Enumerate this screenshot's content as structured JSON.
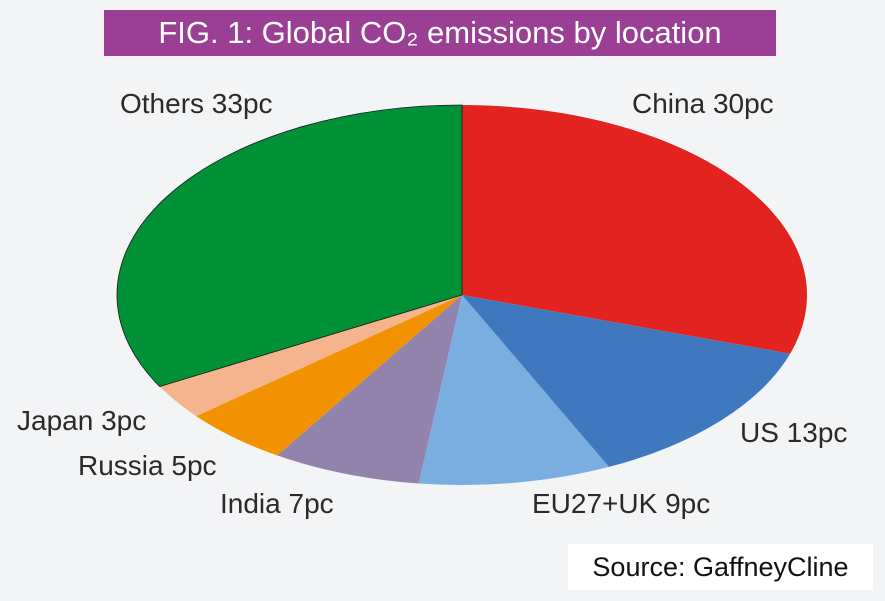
{
  "header": {
    "title": "FIG. 1: Global CO₂ emissions by location",
    "source": "Source: GaffneyCline"
  },
  "chart_data": {
    "type": "pie",
    "title": "FIG. 1: Global CO₂ emissions by location",
    "source": "Source: GaffneyCline",
    "slices": [
      {
        "name": "China",
        "value": 30,
        "label": "China 30pc",
        "color": "#e2231f"
      },
      {
        "name": "US",
        "value": 13,
        "label": "US 13pc",
        "color": "#3f78bf"
      },
      {
        "name": "EU27+UK",
        "value": 9,
        "label": "EU27+UK 9pc",
        "color": "#7baee0"
      },
      {
        "name": "India",
        "value": 7,
        "label": "India 7pc",
        "color": "#9283ad"
      },
      {
        "name": "Russia",
        "value": 5,
        "label": "Russia 5pc",
        "color": "#f39200"
      },
      {
        "name": "Japan",
        "value": 3,
        "label": "Japan 3pc",
        "color": "#f5b48d"
      },
      {
        "name": "Others",
        "value": 33,
        "label": "Others 33pc",
        "color": "#009036"
      }
    ]
  }
}
